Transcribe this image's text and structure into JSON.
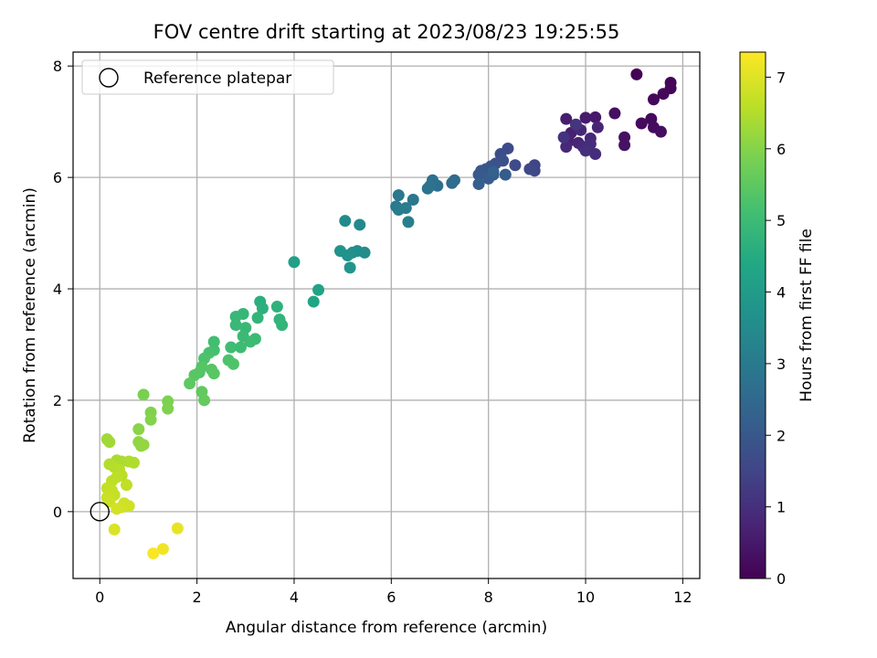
{
  "chart_data": {
    "type": "scatter",
    "title": "FOV centre drift starting at 2023/08/23 19:25:55",
    "xlabel": "Angular distance from reference (arcmin)",
    "ylabel": "Rotation from reference (arcmin)",
    "xlim": [
      -0.55,
      12.35
    ],
    "ylim": [
      -1.2,
      8.25
    ],
    "xticks": [
      0,
      2,
      4,
      6,
      8,
      10,
      12
    ],
    "yticks": [
      0,
      2,
      4,
      6,
      8
    ],
    "grid": true,
    "legend": {
      "placement": "top-left",
      "entries": [
        "Reference platepar"
      ]
    },
    "reference_point": {
      "x": 0,
      "y": 0
    },
    "colorbar": {
      "label": "Hours from first FF file",
      "colormap": "viridis",
      "range": [
        0,
        7.35
      ],
      "ticks": [
        0,
        1,
        2,
        3,
        4,
        5,
        6,
        7
      ]
    },
    "points": [
      [
        11.05,
        7.85,
        0.05
      ],
      [
        11.75,
        7.7,
        0.08
      ],
      [
        11.75,
        7.6,
        0.1
      ],
      [
        11.6,
        7.5,
        0.12
      ],
      [
        11.4,
        7.4,
        0.15
      ],
      [
        11.35,
        7.05,
        0.18
      ],
      [
        11.15,
        6.97,
        0.2
      ],
      [
        11.4,
        6.9,
        0.22
      ],
      [
        11.55,
        6.82,
        0.25
      ],
      [
        10.6,
        7.15,
        0.3
      ],
      [
        10.8,
        6.72,
        0.33
      ],
      [
        10.8,
        6.58,
        0.36
      ],
      [
        10.2,
        7.08,
        0.5
      ],
      [
        10.0,
        7.07,
        0.55
      ],
      [
        9.6,
        7.05,
        0.6
      ],
      [
        9.7,
        6.8,
        0.65
      ],
      [
        9.65,
        6.65,
        0.7
      ],
      [
        9.85,
        6.62,
        0.75
      ],
      [
        10.25,
        6.9,
        0.78
      ],
      [
        10.1,
        6.7,
        0.8
      ],
      [
        9.9,
        6.85,
        0.82
      ],
      [
        9.6,
        6.55,
        0.85
      ],
      [
        9.95,
        6.55,
        0.9
      ],
      [
        10.1,
        6.6,
        0.92
      ],
      [
        10.2,
        6.42,
        0.95
      ],
      [
        10.0,
        6.48,
        1.0
      ],
      [
        9.55,
        6.72,
        1.05
      ],
      [
        9.8,
        6.95,
        1.1
      ],
      [
        8.95,
        6.22,
        1.5
      ],
      [
        8.95,
        6.12,
        1.55
      ],
      [
        8.85,
        6.15,
        1.6
      ],
      [
        8.55,
        6.22,
        1.65
      ],
      [
        8.4,
        6.52,
        1.7
      ],
      [
        8.25,
        6.42,
        1.75
      ],
      [
        8.3,
        6.3,
        1.8
      ],
      [
        8.15,
        6.25,
        1.85
      ],
      [
        8.05,
        6.2,
        1.9
      ],
      [
        7.95,
        6.15,
        1.95
      ],
      [
        7.85,
        6.12,
        2.0
      ],
      [
        7.8,
        6.05,
        2.05
      ],
      [
        8.1,
        6.05,
        2.1
      ],
      [
        8.35,
        6.05,
        2.12
      ],
      [
        8.0,
        5.98,
        2.15
      ],
      [
        7.8,
        5.88,
        2.2
      ],
      [
        8.1,
        6.1,
        2.25
      ],
      [
        7.3,
        5.95,
        2.55
      ],
      [
        7.25,
        5.9,
        2.6
      ],
      [
        6.95,
        5.85,
        2.65
      ],
      [
        6.85,
        5.95,
        2.7
      ],
      [
        6.8,
        5.85,
        2.75
      ],
      [
        6.75,
        5.8,
        2.8
      ],
      [
        6.45,
        5.6,
        2.9
      ],
      [
        6.15,
        5.68,
        2.95
      ],
      [
        6.1,
        5.48,
        3.0
      ],
      [
        6.15,
        5.42,
        3.05
      ],
      [
        6.3,
        5.45,
        3.1
      ],
      [
        6.35,
        5.2,
        3.15
      ],
      [
        5.35,
        5.15,
        3.45
      ],
      [
        5.05,
        5.22,
        3.5
      ],
      [
        5.45,
        4.65,
        3.55
      ],
      [
        5.3,
        4.68,
        3.6
      ],
      [
        5.2,
        4.65,
        3.65
      ],
      [
        5.1,
        4.6,
        3.7
      ],
      [
        4.95,
        4.68,
        3.75
      ],
      [
        5.15,
        4.38,
        3.8
      ],
      [
        4.0,
        4.48,
        4.15
      ],
      [
        4.5,
        3.98,
        4.25
      ],
      [
        4.4,
        3.77,
        4.3
      ],
      [
        3.3,
        3.77,
        4.6
      ],
      [
        3.35,
        3.65,
        4.65
      ],
      [
        3.65,
        3.68,
        4.7
      ],
      [
        3.7,
        3.45,
        4.75
      ],
      [
        3.75,
        3.35,
        4.78
      ],
      [
        3.25,
        3.48,
        4.8
      ],
      [
        2.95,
        3.55,
        4.85
      ],
      [
        2.8,
        3.5,
        4.88
      ],
      [
        3.0,
        3.3,
        4.9
      ],
      [
        2.8,
        3.35,
        4.92
      ],
      [
        2.95,
        3.15,
        4.95
      ],
      [
        3.2,
        3.1,
        4.98
      ],
      [
        3.1,
        3.05,
        5.0
      ],
      [
        2.9,
        2.95,
        5.02
      ],
      [
        2.7,
        2.95,
        5.05
      ],
      [
        2.35,
        3.05,
        5.1
      ],
      [
        2.35,
        2.9,
        5.15
      ],
      [
        2.25,
        2.85,
        5.2
      ],
      [
        2.15,
        2.75,
        5.25
      ],
      [
        2.65,
        2.72,
        5.28
      ],
      [
        2.75,
        2.65,
        5.3
      ],
      [
        2.05,
        2.5,
        5.35
      ],
      [
        2.1,
        2.6,
        5.38
      ],
      [
        2.3,
        2.55,
        5.4
      ],
      [
        2.35,
        2.48,
        5.42
      ],
      [
        1.95,
        2.45,
        5.45
      ],
      [
        1.85,
        2.3,
        5.5
      ],
      [
        2.1,
        2.15,
        5.55
      ],
      [
        2.15,
        2.0,
        5.6
      ],
      [
        0.9,
        2.1,
        5.85
      ],
      [
        1.4,
        1.98,
        5.9
      ],
      [
        1.4,
        1.85,
        5.92
      ],
      [
        1.05,
        1.78,
        5.95
      ],
      [
        1.05,
        1.65,
        5.98
      ],
      [
        0.8,
        1.48,
        6.05
      ],
      [
        0.8,
        1.25,
        6.1
      ],
      [
        0.85,
        1.18,
        6.12
      ],
      [
        0.9,
        1.2,
        6.15
      ],
      [
        0.15,
        1.3,
        6.3
      ],
      [
        0.2,
        1.25,
        6.32
      ],
      [
        0.35,
        0.92,
        6.4
      ],
      [
        0.45,
        0.9,
        6.42
      ],
      [
        0.6,
        0.9,
        6.45
      ],
      [
        0.7,
        0.88,
        6.47
      ],
      [
        0.2,
        0.85,
        6.5
      ],
      [
        0.3,
        0.8,
        6.52
      ],
      [
        0.4,
        0.75,
        6.55
      ],
      [
        0.45,
        0.65,
        6.58
      ],
      [
        0.35,
        0.62,
        6.6
      ],
      [
        0.25,
        0.55,
        6.62
      ],
      [
        0.55,
        0.48,
        6.65
      ],
      [
        0.15,
        0.42,
        6.68
      ],
      [
        0.25,
        0.38,
        6.7
      ],
      [
        0.3,
        0.3,
        6.72
      ],
      [
        0.15,
        0.25,
        6.75
      ],
      [
        0.2,
        0.18,
        6.78
      ],
      [
        0.5,
        0.15,
        6.8
      ],
      [
        0.6,
        0.1,
        6.82
      ],
      [
        0.45,
        0.08,
        6.85
      ],
      [
        0.35,
        0.05,
        6.87
      ],
      [
        0.3,
        -0.32,
        6.95
      ],
      [
        1.6,
        -0.3,
        7.1
      ],
      [
        1.3,
        -0.67,
        7.2
      ],
      [
        1.1,
        -0.75,
        7.3
      ]
    ]
  }
}
